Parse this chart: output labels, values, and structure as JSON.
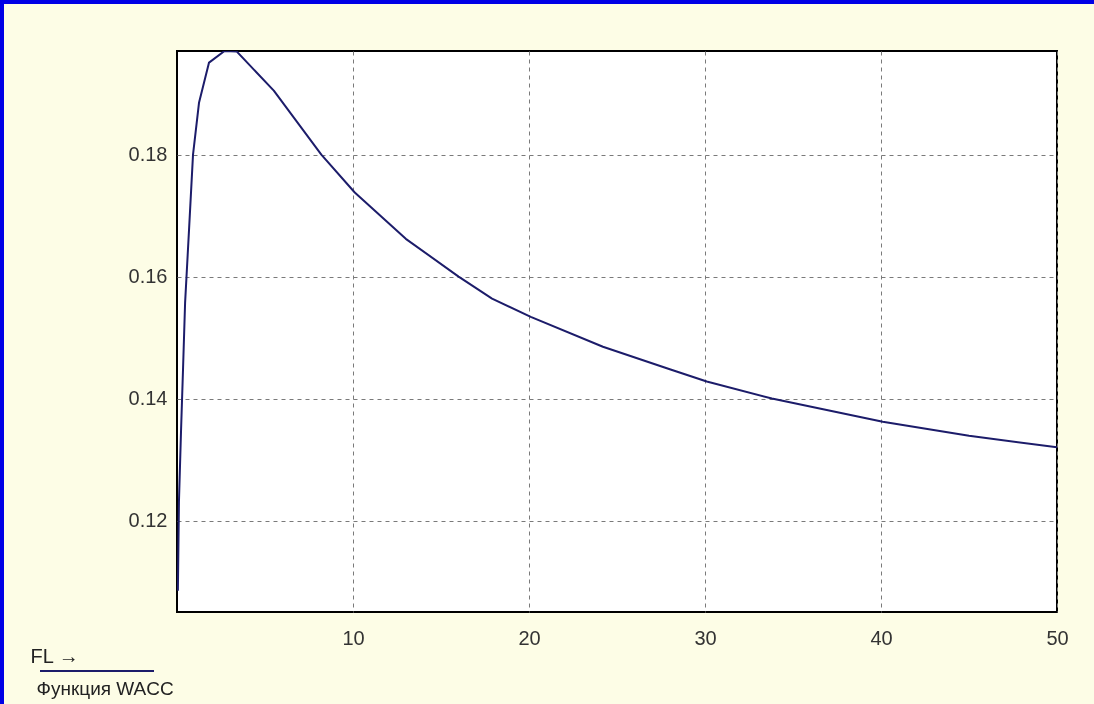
{
  "chart_data": {
    "type": "line",
    "xlabel": "FL →",
    "ylabel": "Функция WACC",
    "x": [
      0.05,
      0.11,
      0.23,
      0.34,
      0.46,
      0.68,
      0.91,
      1.25,
      1.82,
      2.7,
      3.4,
      5.5,
      8.2,
      10.1,
      13,
      16,
      17.9,
      20.1,
      24.2,
      28,
      30.1,
      33.8,
      40.1,
      45,
      50
    ],
    "series": [
      {
        "color": "#1c1c6a",
        "values": [
          0.1085,
          0.123,
          0.1348,
          0.1446,
          0.1557,
          0.1675,
          0.18,
          0.1885,
          0.1951,
          0.197,
          0.1969,
          0.1905,
          0.18,
          0.1738,
          0.1662,
          0.16,
          0.1564,
          0.1534,
          0.1485,
          0.1448,
          0.1428,
          0.14,
          0.1362,
          0.1339,
          0.132
        ]
      }
    ],
    "xlim": [
      0,
      50
    ],
    "ylim": [
      0.105,
      0.197
    ],
    "xticks": [
      10,
      20,
      30,
      40,
      50
    ],
    "yticks": [
      0.12,
      0.14,
      0.16,
      0.18
    ],
    "grid": true
  }
}
